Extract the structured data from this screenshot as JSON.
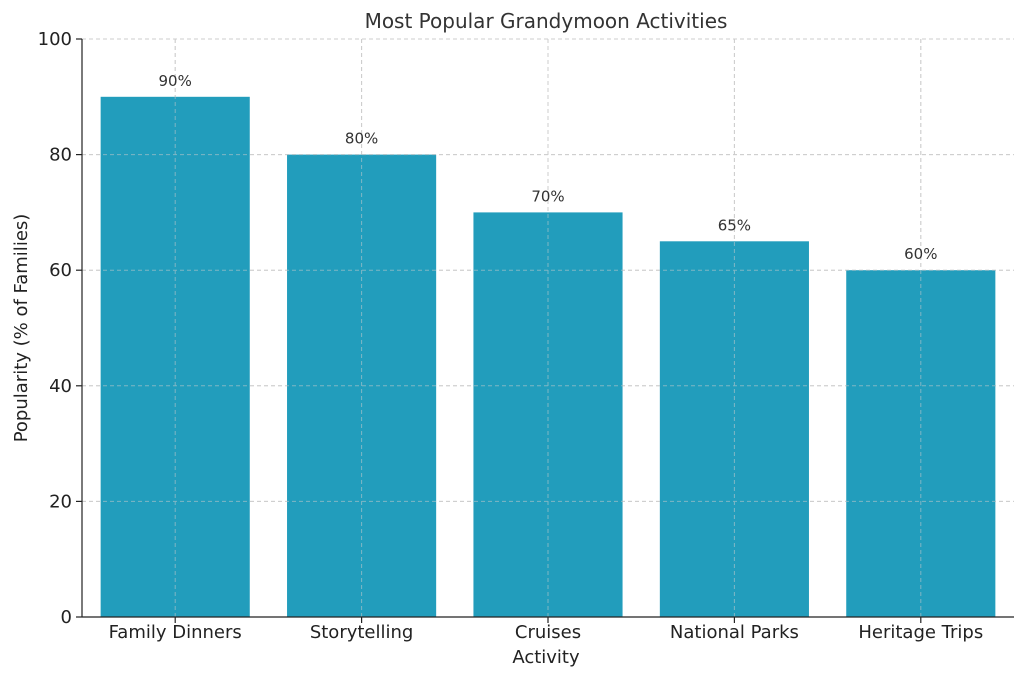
{
  "chart_data": {
    "type": "bar",
    "title": "Most Popular Grandymoon Activities",
    "xlabel": "Activity",
    "ylabel": "Popularity (% of Families)",
    "categories": [
      "Family Dinners",
      "Storytelling",
      "Cruises",
      "National Parks",
      "Heritage Trips"
    ],
    "values": [
      90,
      80,
      70,
      65,
      60
    ],
    "data_labels": [
      "90%",
      "80%",
      "70%",
      "65%",
      "60%"
    ],
    "ylim": [
      0,
      100
    ],
    "yticks": [
      0,
      20,
      40,
      60,
      80,
      100
    ],
    "grid": true,
    "bar_color": "#229dbc"
  }
}
